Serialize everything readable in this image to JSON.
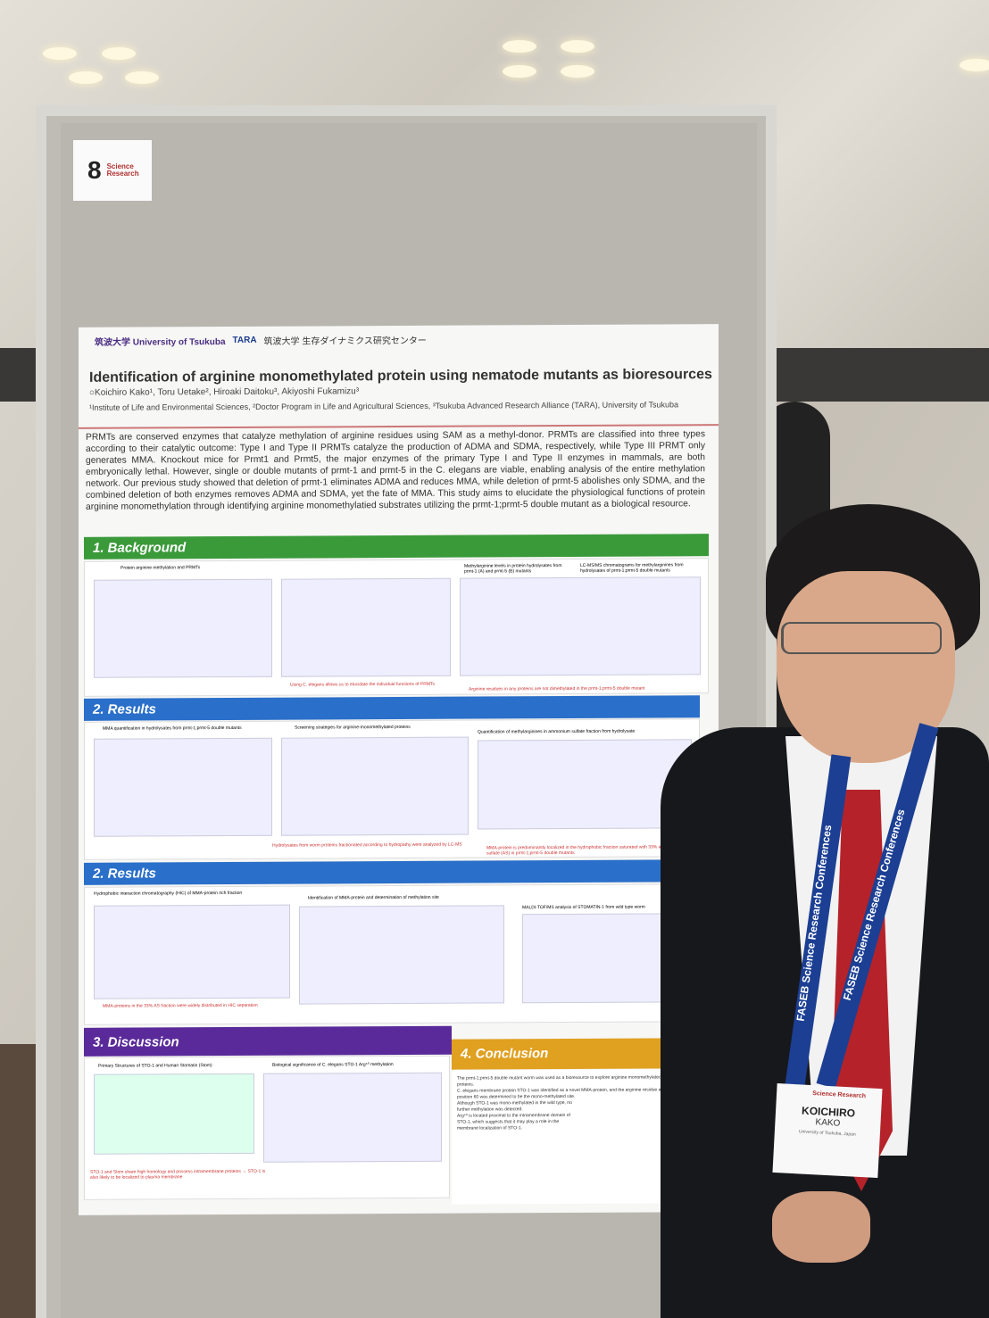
{
  "scene": {
    "description_free": true
  },
  "number_card": {
    "number": "8",
    "logo_text": "Science Research"
  },
  "poster": {
    "university_logo": "筑波大学 University of Tsukuba",
    "tara_logo": "TARA",
    "tara_subtitle": "筑波大学 生存ダイナミクス研究センター",
    "title": "Identification of arginine monomethylated protein using nematode mutants as bioresources",
    "authors": "○Koichiro Kako¹, Toru Uetake², Hiroaki Daitoku³, Akiyoshi Fukamizu³",
    "affiliations": "¹Institute of Life and Environmental Sciences, ²Doctor Program in Life and Agricultural Sciences, ³Tsukuba Advanced Research Alliance (TARA), University of Tsukuba",
    "abstract": "PRMTs are conserved enzymes that catalyze methylation of arginine residues using SAM as a methyl-donor. PRMTs are classified into three types according to their catalytic outcome: Type I and Type II PRMTs catalyze the production of ADMA and SDMA, respectively, while Type III PRMT only generates MMA. Knockout mice for Prmt1 and Prmt5, the major enzymes of the primary Type I and Type II enzymes in mammals, are both embryonically lethal. However, single or double mutants of prmt-1 and prmt-5 in the C. elegans are viable, enabling analysis of the entire methylation network. Our previous study showed that deletion of prmt-1 eliminates ADMA and reduces MMA, while deletion of prmt-5 abolishes only SDMA, and the combined deletion of both enzymes removes ADMA and SDMA, yet the fate of MMA. This study aims to elucidate the physiological functions of protein arginine monomethylation through identifying arginine monomethylatied substrates utilizing the prmt-1;prmt-5 double mutant as a biological resource.",
    "sections": [
      {
        "label": "1. Background",
        "color": "#3a9a3a"
      },
      {
        "label": "2. Results",
        "color": "#2a6fc9"
      },
      {
        "label": "2. Results",
        "color": "#2a6fc9"
      },
      {
        "label": "3. Discussion",
        "color": "#5a2a9a"
      },
      {
        "label": "4. Conclusion",
        "color": "#e0a020"
      }
    ],
    "panel_titles": [
      "Protein arginine methylation and PRMTs",
      "Methylarginine levels in protein hydrolysates from prmt-1 (A) and prmt-5 (B) mutants",
      "LC-MS/MS chromatograms for methylarginines from hydrolysates of prmt-1;prmt-5 double mutants",
      "MMA quantification in hydrolysates from prmt-1;prmt-5 double mutants",
      "Screening strategies for arginine-monomethylated proteins",
      "Quantification of methylarginines in ammonium sulfate fraction from hydrolysate",
      "Hydrophobic interaction chromatography (HIC) of MMA-protein rich fraction",
      "Identification of MMA-protein and determination of methylation site",
      "MALDI-TOF/MS analysis of STOMATIN-1 from wild type worm",
      "Primary Structures of STO-1 and Human Stomatin (Stom)",
      "Biological significance of C. elegans STO-1 Arg⁶⁰ methylation"
    ],
    "captions": [
      "Using C. elegans allows us to elucidate the individual functions of PRMTs",
      "Arginine residues in any proteins are not dimethylated in the prmt-1;prmt-5 double mutant",
      "Hydrolysates from worm proteins fractionated according to hydropathy were analyzed by LC-MS",
      "MMA-protein is predominantly localized in the hydrophobic fraction saturated with 33% ammonium sulfate (AS) in prmt-1;prmt-5 double mutants",
      "MMA-proteins in the 33% AS fraction were widely distributed in HIC separation",
      "STO-1 and Stom share high homology and possess intramembrane proteins → STO-1 is also likely to be localized to plasma membrane"
    ],
    "conclusion": [
      "The prmt-1;prmt-5 double mutant worm was used as a bioresource to explore arginine monomethylated proteins.",
      "C. elegans membrane protein STO-1 was identified as a novel MMA-protein, and the arginine residue at position 60 was determined to be the mono-methylated site.",
      "Although STO-1 was mono-methylated in the wild type, no further methylation was detected.",
      "Arg⁶⁰ is located proximal to the intramembrane domain of STO-1, which suggests that it may play a role in the membrane localization of STO-1."
    ]
  },
  "badge": {
    "brand": "Science Research",
    "first_name": "KOICHIRO",
    "last_name": "KAKO",
    "organization": "University of Tsukuba, Japan"
  },
  "lanyard": {
    "text": "FASEB Science Research Conferences"
  }
}
